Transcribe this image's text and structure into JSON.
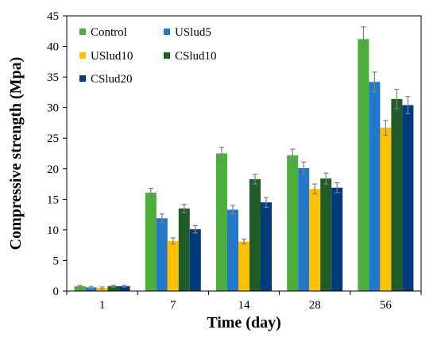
{
  "chart_data": {
    "type": "bar",
    "title": "",
    "xlabel": "Time (day)",
    "ylabel": "Compressive strength (Mpa)",
    "ylim": [
      0,
      45
    ],
    "ytick_step": 5,
    "grid": false,
    "legend_placement": "top-left",
    "categories": [
      "1",
      "7",
      "14",
      "28",
      "56"
    ],
    "series": [
      {
        "name": "Control",
        "color": "#4caf38",
        "values": [
          0.8,
          16.1,
          22.5,
          22.2,
          41.2
        ],
        "errors": [
          0.15,
          0.7,
          1.0,
          1.0,
          2.0
        ]
      },
      {
        "name": "USlud5",
        "color": "#2478cc",
        "values": [
          0.6,
          11.9,
          13.3,
          20.1,
          34.2
        ],
        "errors": [
          0.15,
          0.7,
          0.7,
          1.0,
          1.6
        ]
      },
      {
        "name": "USlud10",
        "color": "#ffc000",
        "values": [
          0.5,
          8.2,
          8.1,
          16.7,
          26.7
        ],
        "errors": [
          0.15,
          0.5,
          0.4,
          0.8,
          1.2
        ]
      },
      {
        "name": "CSlud10",
        "color": "#1f5c28",
        "values": [
          0.8,
          13.5,
          18.3,
          18.4,
          31.4
        ],
        "errors": [
          0.15,
          0.7,
          0.8,
          0.9,
          1.6
        ]
      },
      {
        "name": "CSlud20",
        "color": "#003c7d",
        "values": [
          0.8,
          10.1,
          14.5,
          16.9,
          30.4
        ],
        "errors": [
          0.15,
          0.6,
          0.8,
          0.8,
          1.4
        ]
      }
    ]
  }
}
